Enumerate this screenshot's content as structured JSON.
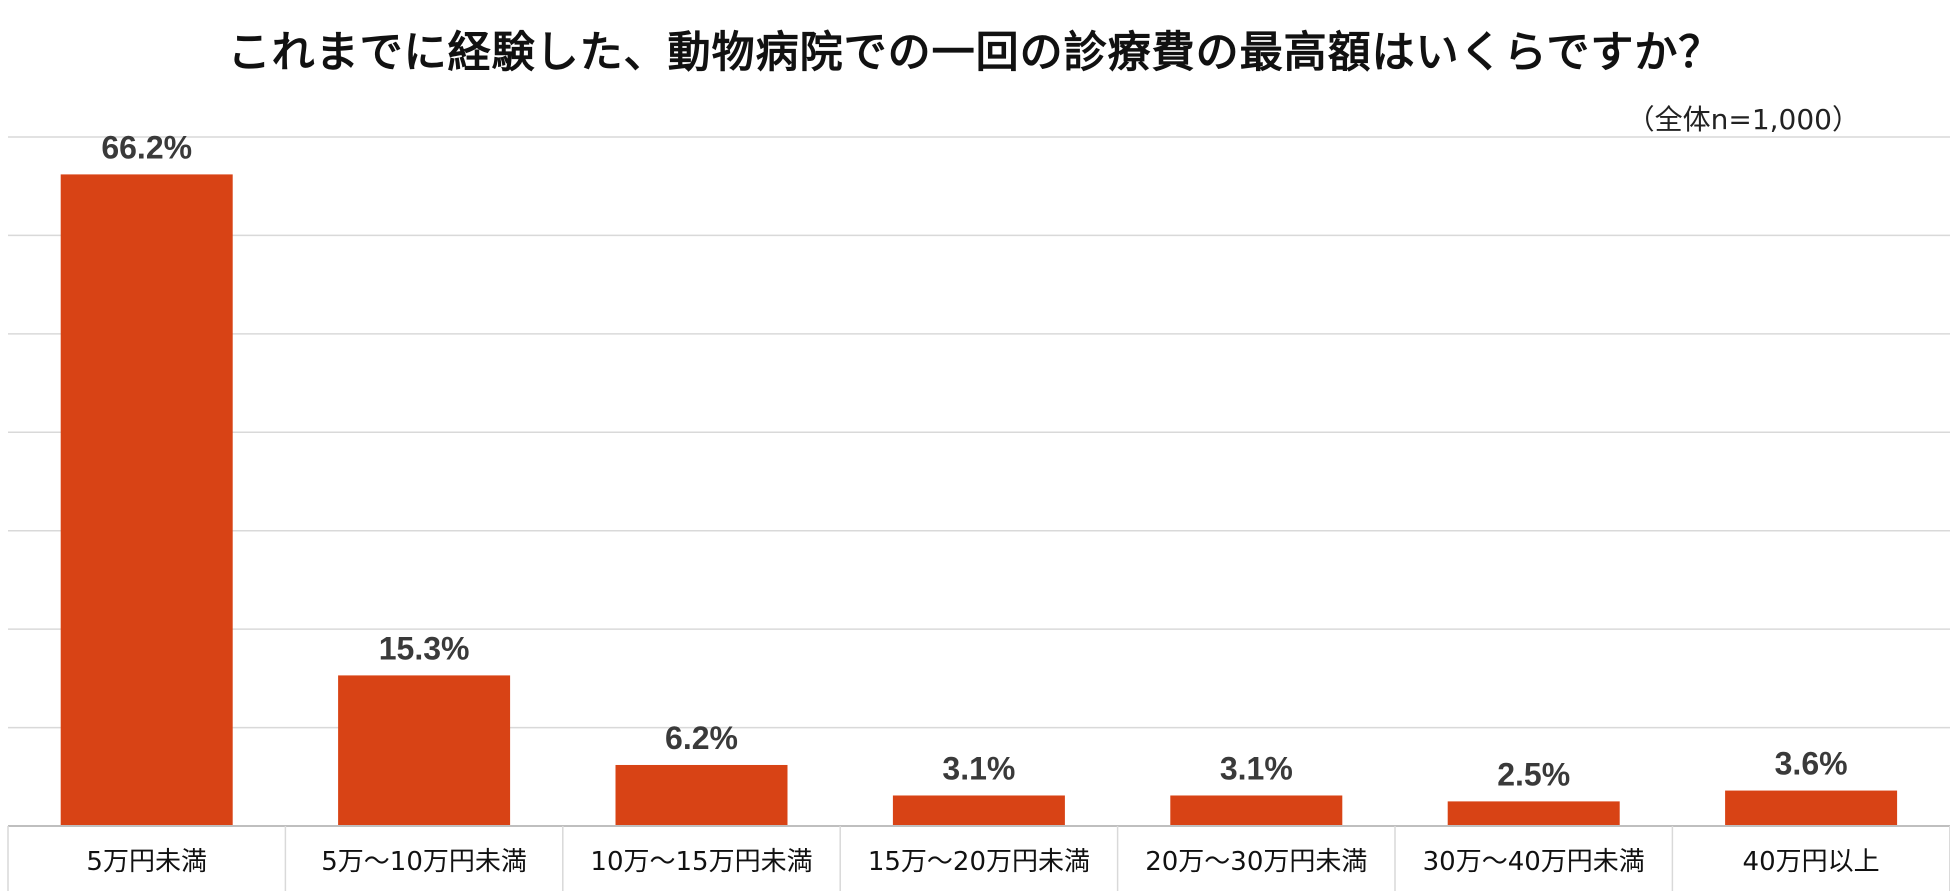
{
  "chart_data": {
    "type": "bar",
    "title": "これまでに経験した、動物病院での一回の診療費の最高額はいくらですか？",
    "subtitle": "（全体n=1,000）",
    "categories": [
      "5万円未満",
      "5万～10万円未満",
      "10万～15万円未満",
      "15万～20万円未満",
      "20万～30万円未満",
      "30万～40万円未満",
      "40万円以上"
    ],
    "values": [
      66.2,
      15.3,
      6.2,
      3.1,
      3.1,
      2.5,
      3.6
    ],
    "value_labels": [
      "66.2%",
      "15.3%",
      "6.2%",
      "3.1%",
      "3.1%",
      "2.5%",
      "3.6%"
    ],
    "ylim": [
      0,
      70
    ],
    "ytick_step": 10,
    "grid": true,
    "legend": "none",
    "colors": {
      "bar": "#D84315",
      "grid": "#d9d9d9",
      "axis": "#bfbfbf"
    }
  }
}
